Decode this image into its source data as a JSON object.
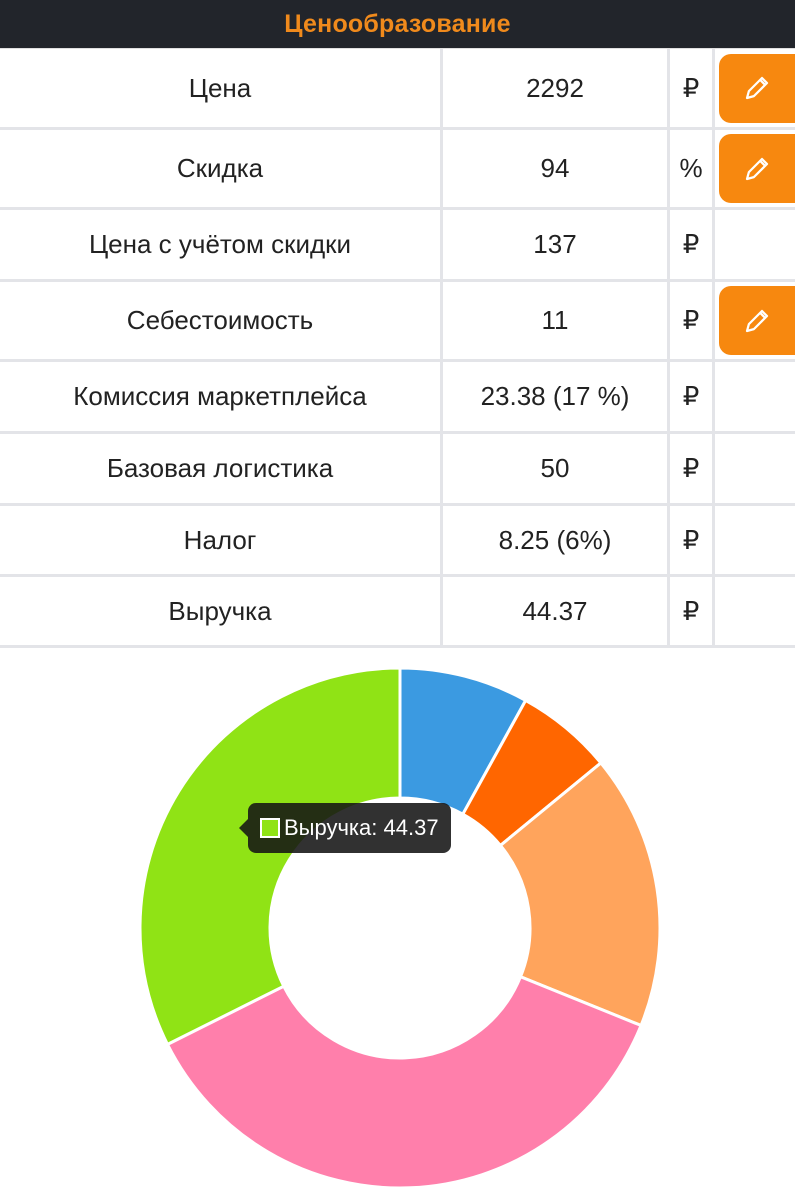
{
  "header": {
    "title": "Ценообразование"
  },
  "table": {
    "rows": [
      {
        "label": "Цена",
        "value": "2292",
        "unit": "₽",
        "editable": true
      },
      {
        "label": "Скидка",
        "value": "94",
        "unit": "%",
        "editable": true
      },
      {
        "label": "Цена с учётом скидки",
        "value": "137",
        "unit": "₽",
        "editable": false
      },
      {
        "label": "Себестоимость",
        "value": "11",
        "unit": "₽",
        "editable": true
      },
      {
        "label": "Комиссия маркетплейса",
        "value": "23.38 (17 %)",
        "unit": "₽",
        "editable": false
      },
      {
        "label": "Базовая логистика",
        "value": "50",
        "unit": "₽",
        "editable": false
      },
      {
        "label": "Налог",
        "value": "8.25 (6%)",
        "unit": "₽",
        "editable": false
      },
      {
        "label": "Выручка",
        "value": "44.37",
        "unit": "₽",
        "editable": false
      }
    ],
    "edit_icon": "pencil-icon"
  },
  "chart_data": {
    "type": "pie",
    "donut": true,
    "slices": [
      {
        "name": "Себестоимость",
        "value": 11,
        "color": "#3b9ae1"
      },
      {
        "name": "Налог",
        "value": 8.25,
        "color": "#ff6600"
      },
      {
        "name": "Комиссия маркетплейса",
        "value": 23.38,
        "color": "#ffa45c"
      },
      {
        "name": "Базовая логистика",
        "value": 50,
        "color": "#ff7fab"
      },
      {
        "name": "Выручка",
        "value": 44.37,
        "color": "#90e315"
      }
    ],
    "tooltip": {
      "text": "Выручка: 44.37",
      "swatch_color": "#90e315"
    }
  }
}
